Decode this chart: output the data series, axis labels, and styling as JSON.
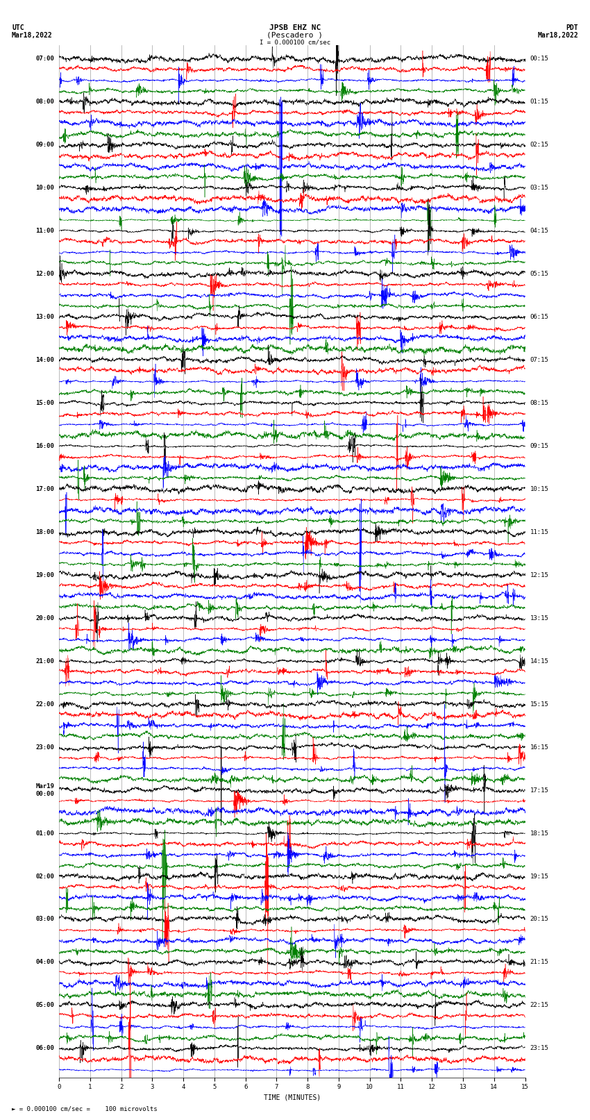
{
  "title_line1": "JPSB EHZ NC",
  "title_line2": "(Pescadero )",
  "scale_label": "I = 0.000100 cm/sec",
  "scale_label2": "= 0.000100 cm/sec =    100 microvolts",
  "utc_label": "UTC",
  "utc_date": "Mar18,2022",
  "pdt_label": "PDT",
  "pdt_date": "Mar18,2022",
  "xlabel": "TIME (MINUTES)",
  "xlim": [
    0,
    15
  ],
  "xticks": [
    0,
    1,
    2,
    3,
    4,
    5,
    6,
    7,
    8,
    9,
    10,
    11,
    12,
    13,
    14,
    15
  ],
  "left_times": [
    "07:00",
    "",
    "",
    "",
    "08:00",
    "",
    "",
    "",
    "09:00",
    "",
    "",
    "",
    "10:00",
    "",
    "",
    "",
    "11:00",
    "",
    "",
    "",
    "12:00",
    "",
    "",
    "",
    "13:00",
    "",
    "",
    "",
    "14:00",
    "",
    "",
    "",
    "15:00",
    "",
    "",
    "",
    "16:00",
    "",
    "",
    "",
    "17:00",
    "",
    "",
    "",
    "18:00",
    "",
    "",
    "",
    "19:00",
    "",
    "",
    "",
    "20:00",
    "",
    "",
    "",
    "21:00",
    "",
    "",
    "",
    "22:00",
    "",
    "",
    "",
    "23:00",
    "",
    "",
    "",
    "Mar19\n00:00",
    "",
    "",
    "",
    "01:00",
    "",
    "",
    "",
    "02:00",
    "",
    "",
    "",
    "03:00",
    "",
    "",
    "",
    "04:00",
    "",
    "",
    "",
    "05:00",
    "",
    "",
    "",
    "06:00",
    "",
    ""
  ],
  "right_times": [
    "00:15",
    "",
    "",
    "",
    "01:15",
    "",
    "",
    "",
    "02:15",
    "",
    "",
    "",
    "03:15",
    "",
    "",
    "",
    "04:15",
    "",
    "",
    "",
    "05:15",
    "",
    "",
    "",
    "06:15",
    "",
    "",
    "",
    "07:15",
    "",
    "",
    "",
    "08:15",
    "",
    "",
    "",
    "09:15",
    "",
    "",
    "",
    "10:15",
    "",
    "",
    "",
    "11:15",
    "",
    "",
    "",
    "12:15",
    "",
    "",
    "",
    "13:15",
    "",
    "",
    "",
    "14:15",
    "",
    "",
    "",
    "15:15",
    "",
    "",
    "",
    "16:15",
    "",
    "",
    "",
    "17:15",
    "",
    "",
    "",
    "18:15",
    "",
    "",
    "",
    "19:15",
    "",
    "",
    "",
    "20:15",
    "",
    "",
    "",
    "21:15",
    "",
    "",
    "",
    "22:15",
    "",
    "",
    "",
    "23:15",
    "",
    ""
  ],
  "trace_colors": [
    "black",
    "red",
    "blue",
    "green"
  ],
  "n_traces": 95,
  "bg_color": "white",
  "grid_color": "#888888",
  "title_fontsize": 8,
  "label_fontsize": 7,
  "tick_fontsize": 6.5
}
